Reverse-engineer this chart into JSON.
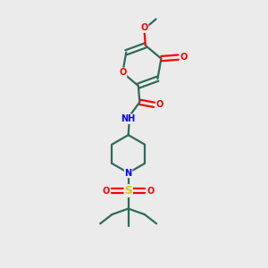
{
  "background_color": "#ebebeb",
  "bond_color": "#2d6b5a",
  "atom_colors": {
    "O": "#ff0000",
    "N": "#0000ff",
    "S": "#cccc00",
    "C": "#2d6b5a",
    "H": "#2d6b5a"
  },
  "figsize": [
    3.0,
    3.0
  ],
  "dpi": 100
}
